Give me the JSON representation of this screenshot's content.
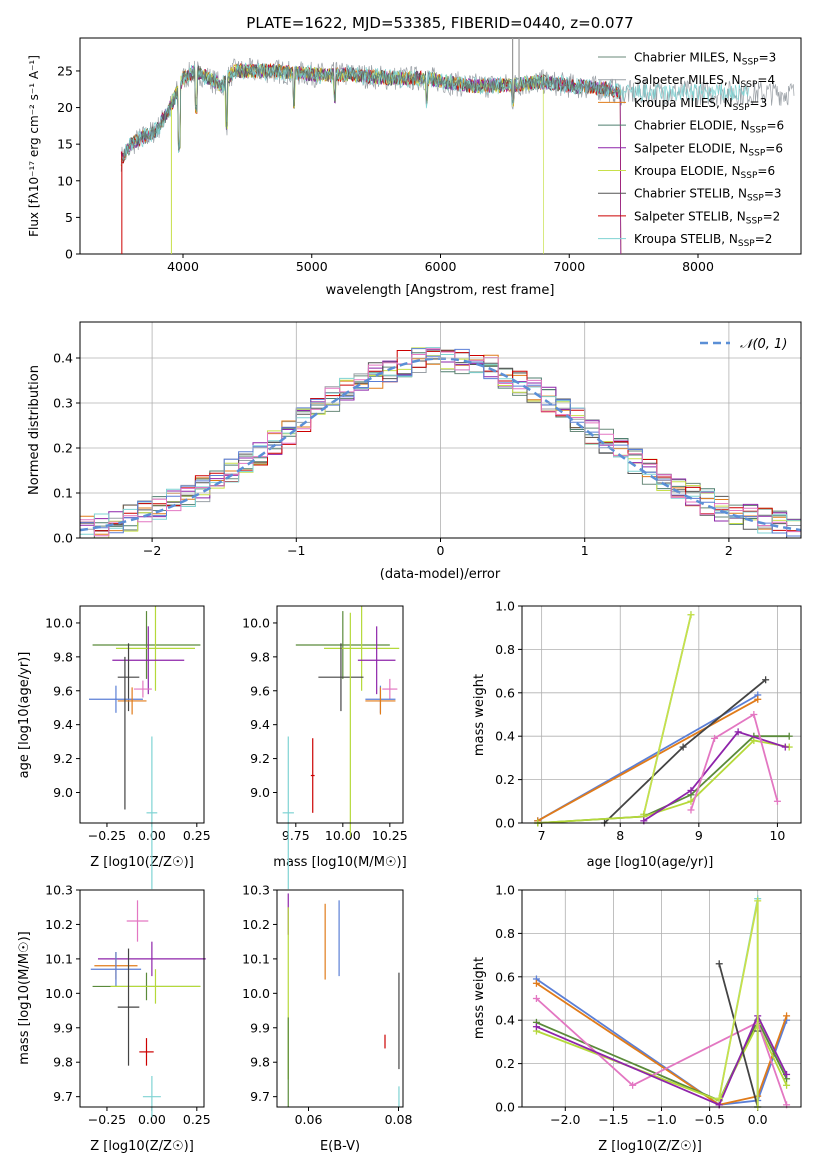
{
  "figure_title": "PLATE=1622, MJD=53385, FIBERID=0440, z=0.077",
  "colors": {
    "Chabrier MILES": "#6a8a7a",
    "Salpeter MILES": "#9aa0a6",
    "Kroupa MILES": "#e07b1a",
    "Chabrier ELODIE": "#4f7f6f",
    "Salpeter ELODIE": "#8e24aa",
    "Kroupa ELODIE": "#c8e04a",
    "Chabrier STELIB": "#555555",
    "Salpeter STELIB": "#cc0000",
    "Kroupa STELIB": "#7fd3d3",
    "blue": "#5b7fd6",
    "pink": "#e377c2",
    "green": "#5a8a3a",
    "orange": "#e07b1a",
    "lime": "#b5d93a",
    "darkgray": "#444444",
    "normal_line": "#5b8fd6"
  },
  "chart_data": [
    {
      "id": "spectrum",
      "type": "line",
      "title": "PLATE=1622, MJD=53385, FIBERID=0440, z=0.077",
      "xlabel": "wavelength [Angstrom, rest frame]",
      "ylabel": "Flux [fλ10⁻¹⁷ erg cm⁻² s⁻¹ A⁻¹]",
      "xlim": [
        3200,
        8800
      ],
      "ylim": [
        0,
        29.5
      ],
      "xticks": [
        4000,
        5000,
        6000,
        7000,
        8000
      ],
      "yticks": [
        0,
        5,
        10,
        15,
        20,
        25
      ],
      "legend_position": "upper right",
      "series": [
        {
          "name": "Chabrier MILES, N_SSP=3",
          "key": "Chabrier MILES"
        },
        {
          "name": "Salpeter MILES, N_SSP=4",
          "key": "Salpeter MILES"
        },
        {
          "name": "Kroupa MILES, N_SSP=3",
          "key": "Kroupa MILES"
        },
        {
          "name": "Chabrier ELODIE, N_SSP=6",
          "key": "Chabrier ELODIE"
        },
        {
          "name": "Salpeter ELODIE, N_SSP=6",
          "key": "Salpeter ELODIE"
        },
        {
          "name": "Kroupa ELODIE, N_SSP=6",
          "key": "Kroupa ELODIE"
        },
        {
          "name": "Chabrier STELIB, N_SSP=3",
          "key": "Chabrier STELIB"
        },
        {
          "name": "Salpeter STELIB, N_SSP=2",
          "key": "Salpeter STELIB"
        },
        {
          "name": "Kroupa STELIB, N_SSP=2",
          "key": "Kroupa STELIB"
        }
      ],
      "envelope": {
        "x": [
          3520,
          3600,
          3700,
          3800,
          3900,
          4000,
          4100,
          4200,
          4300,
          4400,
          4500,
          4700,
          5000,
          5300,
          5600,
          5900,
          6200,
          6500,
          6800,
          7000,
          7300,
          7400
        ],
        "y": [
          13,
          15,
          16,
          17,
          20,
          24,
          25,
          24,
          23,
          25,
          25,
          25,
          24.5,
          24.5,
          24,
          24,
          23,
          23,
          23.5,
          23,
          22.5,
          22
        ]
      }
    },
    {
      "id": "residuals",
      "type": "line",
      "xlabel": "(data-model)/error",
      "ylabel": "Normed distribution",
      "xlim": [
        -2.5,
        2.5
      ],
      "ylim": [
        0,
        0.48
      ],
      "xticks": [
        -2,
        -1,
        0,
        1,
        2
      ],
      "yticks": [
        0.0,
        0.1,
        0.2,
        0.3,
        0.4
      ],
      "legend_position": "upper right",
      "series": [
        {
          "name": "𝒩(0, 1)",
          "style": "dashed"
        }
      ]
    },
    {
      "id": "age_vs_Z",
      "type": "scatter",
      "xlabel": "Z [log10(Z/Z☉)]",
      "ylabel": "age  [log10(age/yr)]",
      "xlim": [
        -0.4,
        0.29
      ],
      "ylim": [
        8.82,
        10.1
      ],
      "xticks": [
        -0.25,
        0.0,
        0.25
      ],
      "yticks": [
        9.0,
        9.2,
        9.4,
        9.6,
        9.8,
        10.0
      ],
      "points": [
        {
          "x": -0.03,
          "xerr": 0.3,
          "y": 9.87,
          "yerr": 0.2,
          "c": "green"
        },
        {
          "x": 0.02,
          "xerr": 0.22,
          "y": 9.85,
          "yerr": 0.25,
          "c": "lime"
        },
        {
          "x": -0.02,
          "xerr": 0.2,
          "y": 9.78,
          "yerr": 0.2,
          "c": "Salpeter ELODIE"
        },
        {
          "x": -0.13,
          "xerr": 0.06,
          "y": 9.68,
          "yerr": 0.2,
          "c": "darkgray"
        },
        {
          "x": -0.05,
          "xerr": 0.05,
          "y": 9.61,
          "yerr": 0.05,
          "c": "pink"
        },
        {
          "x": -0.2,
          "xerr": 0.15,
          "y": 9.55,
          "yerr": 0.08,
          "c": "blue"
        },
        {
          "x": -0.11,
          "xerr": 0.08,
          "y": 9.54,
          "yerr": 0.08,
          "c": "orange"
        },
        {
          "x": -0.15,
          "xerr": 0.0,
          "y": 9.35,
          "yerr": 0.45,
          "c": "darkgray"
        },
        {
          "x": 0.0,
          "xerr": 0.03,
          "y": 8.88,
          "yerr": 0.45,
          "c": "Kroupa STELIB"
        }
      ]
    },
    {
      "id": "age_vs_mass",
      "type": "scatter",
      "xlabel": "mass [log10(M/M☉)]",
      "ylabel": "",
      "xlim": [
        9.65,
        10.32
      ],
      "ylim": [
        8.82,
        10.1
      ],
      "xticks": [
        9.75,
        10.0,
        10.25
      ],
      "yticks": [
        9.0,
        9.2,
        9.4,
        9.6,
        9.8,
        10.0
      ],
      "points": [
        {
          "x": 10.0,
          "xerr": 0.25,
          "y": 9.87,
          "yerr": 0.2,
          "c": "green"
        },
        {
          "x": 10.1,
          "xerr": 0.2,
          "y": 9.85,
          "yerr": 0.25,
          "c": "lime"
        },
        {
          "x": 10.18,
          "xerr": 0.1,
          "y": 9.78,
          "yerr": 0.2,
          "c": "Salpeter ELODIE"
        },
        {
          "x": 9.99,
          "xerr": 0.12,
          "y": 9.68,
          "yerr": 0.2,
          "c": "darkgray"
        },
        {
          "x": 10.25,
          "xerr": 0.04,
          "y": 9.61,
          "yerr": 0.06,
          "c": "pink"
        },
        {
          "x": 10.2,
          "xerr": 0.08,
          "y": 9.55,
          "yerr": 0.08,
          "c": "blue"
        },
        {
          "x": 10.2,
          "xerr": 0.08,
          "y": 9.54,
          "yerr": 0.08,
          "c": "orange"
        },
        {
          "x": 10.04,
          "xerr": 0.0,
          "y": 9.4,
          "yerr": 0.66,
          "c": "lime"
        },
        {
          "x": 9.84,
          "xerr": 0.01,
          "y": 9.1,
          "yerr": 0.22,
          "c": "Salpeter STELIB"
        },
        {
          "x": 9.71,
          "xerr": 0.03,
          "y": 8.88,
          "yerr": 0.45,
          "c": "Kroupa STELIB"
        }
      ]
    },
    {
      "id": "weight_vs_age",
      "type": "line",
      "xlabel": "age  [log10(age/yr)]",
      "ylabel": "mass weight",
      "xlim": [
        6.75,
        10.3
      ],
      "ylim": [
        0,
        1.0
      ],
      "xticks": [
        7,
        8,
        9,
        10
      ],
      "yticks": [
        0.0,
        0.2,
        0.4,
        0.6,
        0.8,
        1.0
      ],
      "series": [
        {
          "c": "blue",
          "x": [
            6.95,
            9.75
          ],
          "y": [
            0.01,
            0.59
          ]
        },
        {
          "c": "orange",
          "x": [
            6.95,
            9.75
          ],
          "y": [
            0.01,
            0.57
          ]
        },
        {
          "c": "darkgray",
          "x": [
            7.8,
            8.8,
            9.85
          ],
          "y": [
            0.0,
            0.35,
            0.66
          ]
        },
        {
          "c": "Kroupa STELIB",
          "x": [
            8.3,
            8.9
          ],
          "y": [
            0.04,
            0.96
          ]
        },
        {
          "c": "Kroupa ELODIE",
          "x": [
            8.3,
            8.9
          ],
          "y": [
            0.04,
            0.96
          ]
        },
        {
          "c": "green",
          "x": [
            6.95,
            8.3,
            8.9,
            9.7,
            10.15
          ],
          "y": [
            0.0,
            0.03,
            0.13,
            0.4,
            0.4
          ]
        },
        {
          "c": "lime",
          "x": [
            6.95,
            8.3,
            8.9,
            9.7,
            10.15
          ],
          "y": [
            0.0,
            0.03,
            0.1,
            0.38,
            0.35
          ]
        },
        {
          "c": "Salpeter ELODIE",
          "x": [
            8.3,
            8.9,
            9.5,
            10.1
          ],
          "y": [
            0.01,
            0.15,
            0.42,
            0.35
          ]
        },
        {
          "c": "pink",
          "x": [
            8.9,
            9.2,
            9.7,
            10.0
          ],
          "y": [
            0.06,
            0.39,
            0.5,
            0.1
          ]
        }
      ]
    },
    {
      "id": "mass_vs_Z",
      "type": "scatter",
      "xlabel": "Z [log10(Z/Z☉)]",
      "ylabel": "mass [log10(M/M☉)]",
      "xlim": [
        -0.4,
        0.29
      ],
      "ylim": [
        9.67,
        10.3
      ],
      "xticks": [
        -0.25,
        0.0,
        0.25
      ],
      "yticks": [
        9.7,
        9.8,
        9.9,
        10.0,
        10.1,
        10.2,
        10.3
      ],
      "points": [
        {
          "x": -0.08,
          "xerr": 0.06,
          "y": 10.21,
          "yerr": 0.06,
          "c": "pink"
        },
        {
          "x": 0.0,
          "xerr": 0.3,
          "y": 10.1,
          "yerr": 0.05,
          "c": "Salpeter ELODIE"
        },
        {
          "x": -0.2,
          "xerr": 0.12,
          "y": 10.08,
          "yerr": 0.04,
          "c": "orange"
        },
        {
          "x": -0.2,
          "xerr": 0.14,
          "y": 10.07,
          "yerr": 0.05,
          "c": "blue"
        },
        {
          "x": -0.03,
          "xerr": 0.3,
          "y": 10.02,
          "yerr": 0.04,
          "c": "green"
        },
        {
          "x": 0.02,
          "xerr": 0.25,
          "y": 10.02,
          "yerr": 0.05,
          "c": "lime"
        },
        {
          "x": -0.13,
          "xerr": 0.06,
          "y": 9.96,
          "yerr": 0.17,
          "c": "darkgray"
        },
        {
          "x": -0.03,
          "xerr": 0.04,
          "y": 9.83,
          "yerr": 0.04,
          "c": "Salpeter STELIB"
        },
        {
          "x": 0.0,
          "xerr": 0.05,
          "y": 9.7,
          "yerr": 0.06,
          "c": "Kroupa STELIB"
        }
      ]
    },
    {
      "id": "mass_vs_ebv",
      "type": "scatter",
      "xlabel": "E(B-V)",
      "ylabel": "",
      "xlim": [
        0.053,
        0.081
      ],
      "ylim": [
        9.67,
        10.3
      ],
      "xticks": [
        0.06,
        0.08
      ],
      "yticks": [
        9.7,
        9.8,
        9.9,
        10.0,
        10.1,
        10.2,
        10.3
      ],
      "points": [
        {
          "x": 0.0555,
          "y": 10.23,
          "yerr": 0.06,
          "c": "Salpeter ELODIE"
        },
        {
          "x": 0.0555,
          "y": 10.0,
          "yerr": 0.25,
          "c": "lime"
        },
        {
          "x": 0.0555,
          "y": 9.8,
          "yerr": 0.13,
          "c": "green"
        },
        {
          "x": 0.0637,
          "y": 10.15,
          "yerr": 0.11,
          "c": "orange"
        },
        {
          "x": 0.0668,
          "y": 10.16,
          "yerr": 0.11,
          "c": "blue"
        },
        {
          "x": 0.077,
          "y": 9.86,
          "yerr": 0.02,
          "c": "Salpeter STELIB"
        },
        {
          "x": 0.0801,
          "y": 9.92,
          "yerr": 0.14,
          "c": "darkgray"
        },
        {
          "x": 0.0801,
          "y": 9.7,
          "yerr": 0.03,
          "c": "Kroupa STELIB"
        }
      ]
    },
    {
      "id": "weight_vs_Z",
      "type": "line",
      "xlabel": "Z [log10(Z/Z☉)]",
      "ylabel": "mass weight",
      "xlim": [
        -2.45,
        0.45
      ],
      "ylim": [
        0,
        1.0
      ],
      "xticks": [
        -2.0,
        -1.5,
        -1.0,
        -0.5,
        0.0
      ],
      "yticks": [
        0.0,
        0.2,
        0.4,
        0.6,
        0.8,
        1.0
      ],
      "series": [
        {
          "c": "blue",
          "x": [
            -2.3,
            -0.4,
            0.0,
            0.3
          ],
          "y": [
            0.59,
            0.01,
            0.03,
            0.4
          ]
        },
        {
          "c": "orange",
          "x": [
            -2.3,
            -0.4,
            0.0,
            0.3
          ],
          "y": [
            0.57,
            0.01,
            0.05,
            0.42
          ]
        },
        {
          "c": "green",
          "x": [
            -2.3,
            -0.4,
            0.0,
            0.3
          ],
          "y": [
            0.39,
            0.03,
            0.4,
            0.13
          ]
        },
        {
          "c": "lime",
          "x": [
            -2.3,
            -0.4,
            0.0,
            0.3
          ],
          "y": [
            0.35,
            0.03,
            0.38,
            0.1
          ]
        },
        {
          "c": "pink",
          "x": [
            -2.3,
            -1.3,
            0.0,
            0.3
          ],
          "y": [
            0.5,
            0.1,
            0.39,
            0.01
          ]
        },
        {
          "c": "Salpeter ELODIE",
          "x": [
            -2.3,
            -0.4,
            0.0,
            0.3
          ],
          "y": [
            0.37,
            0.01,
            0.42,
            0.15
          ]
        },
        {
          "c": "darkgray",
          "x": [
            -0.4,
            0.0,
            0.0
          ],
          "y": [
            0.66,
            0.0,
            0.35
          ]
        },
        {
          "c": "Kroupa STELIB",
          "x": [
            -0.4,
            0.0,
            0.0
          ],
          "y": [
            0.04,
            0.96,
            0.0
          ]
        },
        {
          "c": "Kroupa ELODIE",
          "x": [
            -0.4,
            0.0,
            0.0
          ],
          "y": [
            0.04,
            0.95,
            0.0
          ]
        }
      ]
    }
  ]
}
